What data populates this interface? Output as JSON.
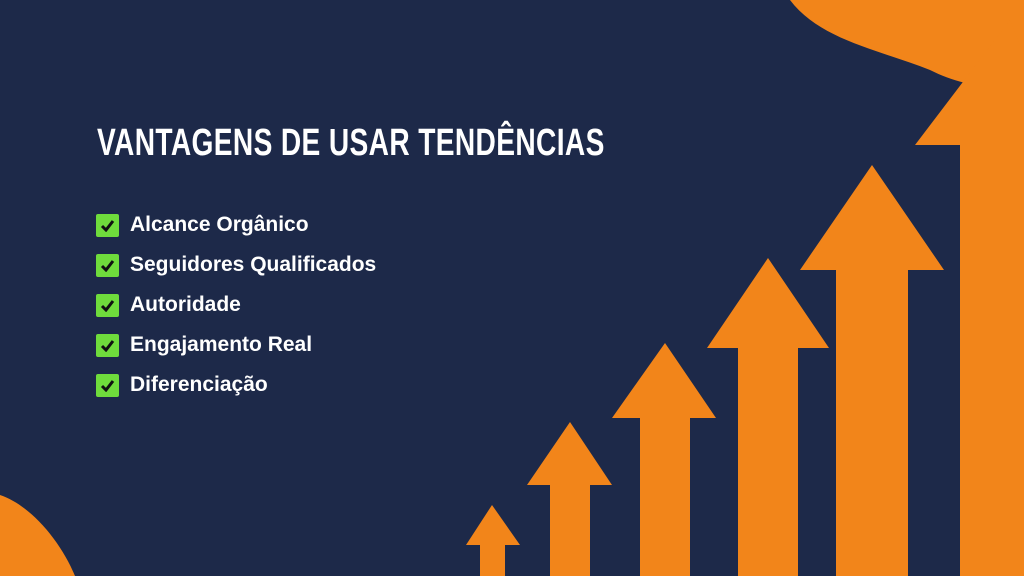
{
  "title": "VANTAGENS DE USAR TENDÊNCIAS",
  "items": [
    {
      "label": "Alcance Orgânico",
      "icon": "check-icon"
    },
    {
      "label": "Seguidores Qualificados",
      "icon": "check-icon"
    },
    {
      "label": "Autoridade",
      "icon": "check-icon"
    },
    {
      "label": "Engajamento Real",
      "icon": "check-icon"
    },
    {
      "label": "Diferenciação",
      "icon": "check-icon"
    }
  ],
  "colors": {
    "background": "#1d2949",
    "accent": "#f2851a",
    "check": "#6fdc3c"
  }
}
